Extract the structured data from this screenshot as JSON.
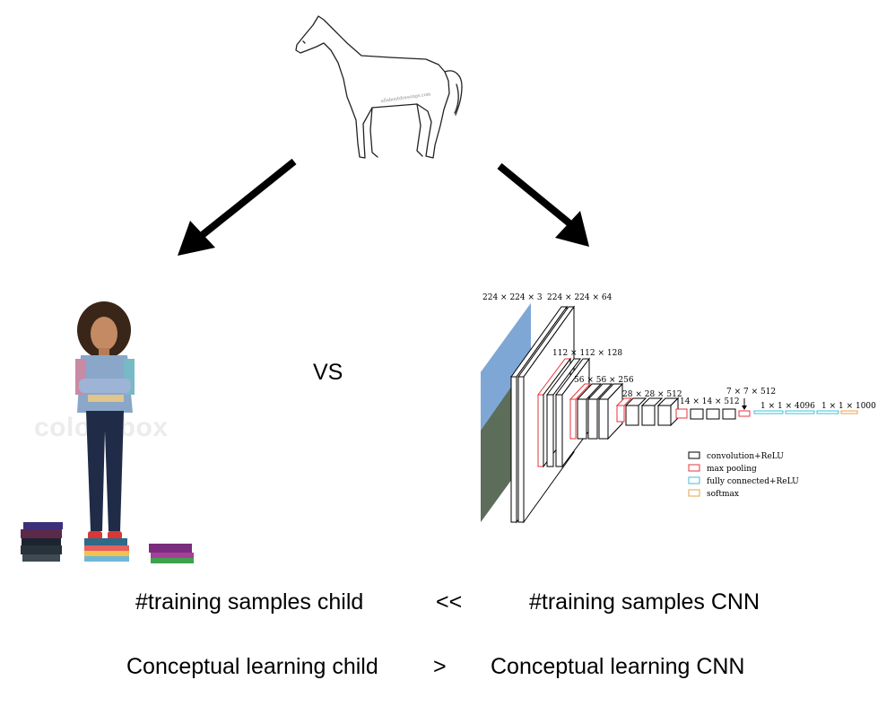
{
  "center_label": "VS",
  "comparisons": [
    {
      "left": "#training samples child",
      "operator": "<<",
      "right": "#training samples CNN"
    },
    {
      "left": "Conceptual learning child",
      "operator": ">",
      "right": "Conceptual learning CNN"
    }
  ],
  "horse_credit": "allaboutdrawings.com",
  "child_watermark": "colourbox",
  "cnn_diagram": {
    "layers": [
      "224 × 224 × 3",
      "224 × 224 × 64",
      "112 × 112 × 128",
      "56 × 56 × 256",
      "28 × 28 × 512",
      "14 × 14 × 512",
      "7 × 7 × 512",
      "1 × 1 × 4096",
      "1 × 1 × 1000"
    ],
    "legend": [
      {
        "label": "convolution+ReLU",
        "color": "#000000"
      },
      {
        "label": "max pooling",
        "color": "#e8333a"
      },
      {
        "label": "fully connected+ReLU",
        "color": "#3fbfd6"
      },
      {
        "label": "softmax",
        "color": "#e8a24a"
      }
    ]
  }
}
